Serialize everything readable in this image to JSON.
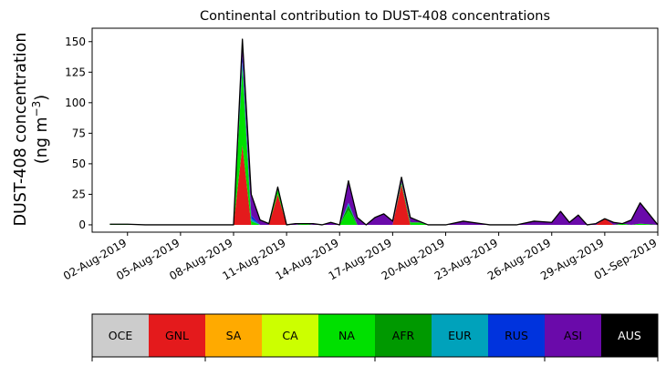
{
  "chart_data": {
    "type": "area",
    "stacked": true,
    "title": "Continental contribution to DUST-408 concentrations",
    "ylabel_line1": "DUST-408 concentration",
    "ylabel_line2_prefix": "(ng m",
    "ylabel_line2_sup": "−3",
    "ylabel_line2_suffix": ")",
    "xlabel": "",
    "ylim": [
      -6,
      161
    ],
    "yticks": [
      0,
      25,
      50,
      75,
      100,
      125,
      150
    ],
    "x_start": "2019-07-31",
    "x_end": "2019-09-01",
    "xticks": [
      "02-Aug-2019",
      "05-Aug-2019",
      "08-Aug-2019",
      "11-Aug-2019",
      "14-Aug-2019",
      "17-Aug-2019",
      "20-Aug-2019",
      "23-Aug-2019",
      "26-Aug-2019",
      "29-Aug-2019",
      "01-Sep-2019"
    ],
    "x": [
      "2019-08-01",
      "2019-08-02",
      "2019-08-03",
      "2019-08-04",
      "2019-08-05",
      "2019-08-06",
      "2019-08-07",
      "2019-08-08",
      "2019-08-08 12:00",
      "2019-08-09",
      "2019-08-09 12:00",
      "2019-08-10",
      "2019-08-10 12:00",
      "2019-08-11",
      "2019-08-11 12:00",
      "2019-08-12",
      "2019-08-12 12:00",
      "2019-08-13",
      "2019-08-13 12:00",
      "2019-08-14",
      "2019-08-14 12:00",
      "2019-08-15",
      "2019-08-15 12:00",
      "2019-08-16",
      "2019-08-16 12:00",
      "2019-08-17",
      "2019-08-17 12:00",
      "2019-08-18",
      "2019-08-18 12:00",
      "2019-08-19",
      "2019-08-19 12:00",
      "2019-08-20",
      "2019-08-21",
      "2019-08-22",
      "2019-08-22 12:00",
      "2019-08-23",
      "2019-08-24",
      "2019-08-25",
      "2019-08-26",
      "2019-08-26 12:00",
      "2019-08-27",
      "2019-08-27 12:00",
      "2019-08-28",
      "2019-08-28 12:00",
      "2019-08-29",
      "2019-08-29 12:00",
      "2019-08-30",
      "2019-08-30 12:00",
      "2019-08-31",
      "2019-09-01"
    ],
    "series": [
      {
        "name": "OCE",
        "color": "#cccccc",
        "values": [
          0,
          0,
          0,
          0,
          0,
          0,
          0,
          0,
          0,
          0,
          0,
          0,
          0,
          0,
          0,
          0,
          0,
          0,
          0,
          0,
          0,
          0,
          0,
          0,
          0,
          0,
          0,
          0,
          0,
          0,
          0,
          0,
          0,
          0,
          0,
          0,
          0,
          0,
          0,
          0,
          0,
          0,
          0,
          0,
          0,
          0,
          0,
          0,
          0,
          0
        ]
      },
      {
        "name": "GNL",
        "color": "#e41a1c",
        "values": [
          0,
          0,
          0,
          0,
          0,
          0,
          0,
          0,
          65,
          0,
          0,
          0,
          25,
          0,
          0,
          0,
          0,
          0,
          0,
          0,
          0,
          0,
          0,
          0,
          0,
          0,
          33,
          0,
          0,
          0,
          0,
          0,
          0,
          0,
          0,
          0,
          0,
          0,
          0,
          0,
          0,
          0,
          0,
          0,
          5,
          0,
          0,
          0,
          0,
          0
        ]
      },
      {
        "name": "SA",
        "color": "#ffaa00",
        "values": [
          0,
          0,
          0,
          0,
          0,
          0,
          0,
          0,
          0,
          0,
          0,
          0,
          0,
          0,
          0,
          0,
          0,
          0,
          0,
          0,
          0,
          0,
          0,
          0,
          0,
          0,
          0,
          0,
          0,
          0,
          0,
          0,
          0,
          0,
          0,
          0,
          0,
          0,
          0,
          0,
          0,
          0,
          0,
          0,
          0,
          0,
          0,
          0,
          0,
          0
        ]
      },
      {
        "name": "CA",
        "color": "#ccff00",
        "values": [
          0,
          0,
          0,
          0,
          0,
          0,
          0,
          0,
          0,
          0,
          0,
          0,
          0,
          0,
          0,
          0,
          0,
          0,
          0,
          0,
          0,
          0,
          0,
          0,
          0,
          0,
          0,
          0,
          0,
          0,
          0,
          0,
          0,
          0,
          0,
          0,
          0,
          0,
          0,
          0,
          0,
          0,
          0,
          0,
          0,
          0,
          0,
          0,
          0,
          0
        ]
      },
      {
        "name": "NA",
        "color": "#00e000",
        "values": [
          0.5,
          0.5,
          0,
          0,
          0,
          0,
          0,
          0,
          65,
          3,
          0,
          0,
          4,
          0,
          0,
          1,
          0,
          0,
          0,
          0,
          12,
          0,
          0,
          0,
          0,
          0,
          2,
          2,
          2,
          0,
          0,
          0,
          0,
          0,
          0,
          0,
          0,
          0,
          0,
          0,
          0,
          0,
          0,
          0,
          0,
          0,
          1,
          0,
          1,
          0
        ]
      },
      {
        "name": "AFR",
        "color": "#009900",
        "values": [
          0,
          0,
          0,
          0,
          0,
          0,
          0,
          0,
          0,
          0,
          0,
          0,
          0,
          0,
          0,
          0,
          0,
          0,
          0,
          0,
          4,
          0,
          0,
          0,
          0,
          0,
          0,
          0,
          0,
          0,
          0,
          0,
          0,
          0,
          0,
          0,
          0,
          0,
          0,
          0,
          0,
          0,
          0,
          0,
          0,
          0,
          0,
          0,
          0,
          0
        ]
      },
      {
        "name": "EUR",
        "color": "#00a2bb",
        "values": [
          0,
          0,
          0,
          0,
          0,
          0,
          0,
          0,
          3,
          2,
          0,
          0,
          0,
          0,
          0,
          0,
          0,
          0,
          0,
          0,
          2,
          0,
          0,
          0,
          0,
          0,
          0,
          0,
          0,
          0,
          0,
          0,
          0,
          0,
          0,
          0,
          0,
          0,
          0,
          0,
          0,
          0,
          0,
          0,
          0,
          0,
          0,
          0,
          0,
          0
        ]
      },
      {
        "name": "RUS",
        "color": "#0033dd",
        "values": [
          0,
          0,
          0,
          0,
          0,
          0,
          0,
          0,
          5,
          3,
          0,
          0,
          0,
          0,
          0,
          0,
          0,
          0,
          0,
          0,
          0,
          0,
          0,
          0,
          0,
          0,
          0,
          0,
          0,
          0,
          0,
          0,
          0,
          0,
          0,
          0,
          0,
          0,
          0,
          0,
          0,
          0,
          0,
          0,
          0,
          0,
          0,
          0,
          0,
          0
        ]
      },
      {
        "name": "ASI",
        "color": "#6a0aaa",
        "values": [
          0,
          0,
          0,
          0,
          0,
          0,
          0,
          0,
          14,
          17,
          4,
          1,
          2,
          0,
          1,
          0,
          1,
          0,
          2,
          0,
          18,
          6,
          0,
          6,
          9,
          3,
          4,
          4,
          1,
          0,
          0,
          0,
          3,
          1,
          0,
          0,
          0,
          3,
          2,
          11,
          2,
          8,
          0,
          1,
          0,
          2,
          0,
          4,
          17,
          0
        ]
      },
      {
        "name": "AUS",
        "color": "#000000",
        "values": [
          0,
          0,
          0,
          0,
          0,
          0,
          0,
          0,
          0,
          0,
          0,
          0,
          0,
          0,
          0,
          0,
          0,
          0,
          0,
          0,
          0,
          0,
          0,
          0,
          0,
          0,
          0,
          0,
          0,
          0,
          0,
          0,
          0,
          0,
          0,
          0,
          0,
          0,
          0,
          0,
          0,
          0,
          0,
          0,
          0,
          0,
          0,
          0,
          0,
          0
        ]
      }
    ]
  },
  "legend_bar": [
    {
      "label": "OCE",
      "color": "#cccccc",
      "text_color": "#000000"
    },
    {
      "label": "GNL",
      "color": "#e41a1c",
      "text_color": "#000000"
    },
    {
      "label": "SA",
      "color": "#ffaa00",
      "text_color": "#000000"
    },
    {
      "label": "CA",
      "color": "#ccff00",
      "text_color": "#000000"
    },
    {
      "label": "NA",
      "color": "#00e000",
      "text_color": "#000000"
    },
    {
      "label": "AFR",
      "color": "#009900",
      "text_color": "#000000"
    },
    {
      "label": "EUR",
      "color": "#00a2bb",
      "text_color": "#000000"
    },
    {
      "label": "RUS",
      "color": "#0033dd",
      "text_color": "#000000"
    },
    {
      "label": "ASI",
      "color": "#6a0aaa",
      "text_color": "#000000"
    },
    {
      "label": "AUS",
      "color": "#000000",
      "text_color": "#ffffff"
    }
  ]
}
